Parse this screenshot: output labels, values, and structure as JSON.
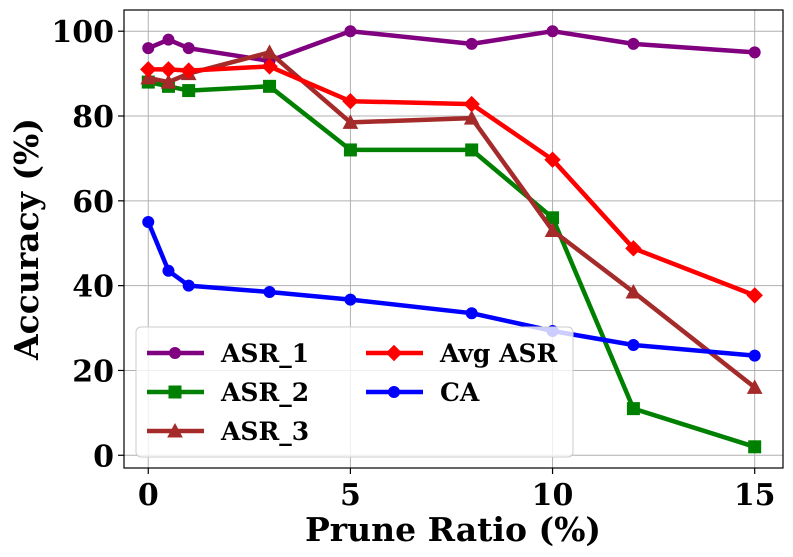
{
  "chart_data": {
    "type": "line",
    "title": "",
    "xlabel": "Prune Ratio (%)",
    "ylabel": "Accuracy (%)",
    "xlim": [
      -0.6,
      15.7
    ],
    "ylim": [
      -3,
      105
    ],
    "xticks": [
      0,
      5,
      10,
      15
    ],
    "yticks": [
      0,
      20,
      40,
      60,
      80,
      100
    ],
    "grid": true,
    "legend_position": "lower-left",
    "x": [
      0,
      0.5,
      1,
      3,
      5,
      8,
      10,
      12,
      15
    ],
    "series": [
      {
        "name": "ASR_1",
        "color": "#800080",
        "marker": "circle",
        "values": [
          96,
          98,
          96,
          93,
          100,
          97,
          100,
          97,
          95
        ]
      },
      {
        "name": "ASR_2",
        "color": "#008000",
        "marker": "square",
        "values": [
          88,
          87,
          86,
          87,
          72,
          72,
          56,
          11,
          2
        ]
      },
      {
        "name": "ASR_3",
        "color": "#a52a2a",
        "marker": "triangle",
        "values": [
          89,
          88,
          90,
          95,
          78.5,
          79.5,
          53,
          38.5,
          16
        ]
      },
      {
        "name": "Avg ASR",
        "color": "#ff0000",
        "marker": "diamond",
        "values": [
          91,
          91,
          90.7,
          91.7,
          83.5,
          82.8,
          69.7,
          48.8,
          37.7
        ]
      },
      {
        "name": "CA",
        "color": "#0000ff",
        "marker": "circle",
        "values": [
          55,
          43.5,
          40,
          38.5,
          36.7,
          33.5,
          29.3,
          26,
          23.5
        ]
      }
    ]
  }
}
